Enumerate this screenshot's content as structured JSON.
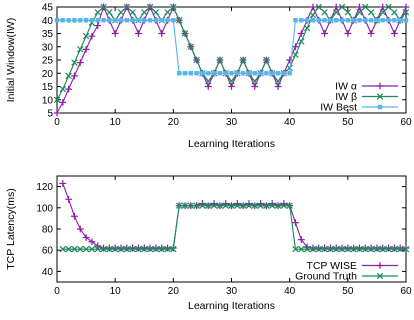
{
  "chart_data": [
    {
      "type": "line",
      "title": "",
      "xlabel": "Learning Iterations",
      "ylabel": "Initial Window(IW)",
      "xlim": [
        0,
        60
      ],
      "ylim": [
        5,
        45
      ],
      "xticks": [
        0,
        10,
        20,
        30,
        40,
        50,
        60
      ],
      "yticks": [
        5,
        10,
        15,
        20,
        25,
        30,
        35,
        40,
        45
      ],
      "legend_position": "bottom-right",
      "x": [
        0,
        1,
        2,
        3,
        4,
        5,
        6,
        7,
        8,
        9,
        10,
        11,
        12,
        13,
        14,
        15,
        16,
        17,
        18,
        19,
        20,
        21,
        22,
        23,
        24,
        25,
        26,
        27,
        28,
        29,
        30,
        31,
        32,
        33,
        34,
        35,
        36,
        37,
        38,
        39,
        40,
        41,
        42,
        43,
        44,
        45,
        46,
        47,
        48,
        49,
        50,
        51,
        52,
        53,
        54,
        55,
        56,
        57,
        58,
        59,
        60
      ],
      "series": [
        {
          "name": "IW α",
          "color": "#8b1fa8",
          "marker": "plus",
          "values": [
            5,
            9,
            14,
            19,
            24,
            29,
            34,
            38,
            45,
            40,
            35,
            40,
            45,
            40,
            35,
            40,
            45,
            40,
            35,
            40,
            45,
            40,
            35,
            30,
            25,
            20,
            15,
            20,
            25,
            20,
            15,
            20,
            25,
            20,
            15,
            20,
            25,
            20,
            15,
            20,
            25,
            30,
            35,
            40,
            45,
            40,
            35,
            40,
            45,
            40,
            35,
            40,
            45,
            40,
            35,
            40,
            45,
            40,
            35,
            40,
            45
          ]
        },
        {
          "name": "IW β",
          "color": "#1b8a5a",
          "marker": "x",
          "values": [
            10,
            14,
            19,
            24,
            29,
            34,
            39,
            43,
            45,
            43,
            40,
            43,
            45,
            43,
            40,
            43,
            45,
            43,
            40,
            43,
            45,
            40,
            35,
            30,
            25,
            20,
            17,
            20,
            25,
            20,
            17,
            20,
            25,
            20,
            17,
            20,
            25,
            20,
            17,
            20,
            22,
            27,
            32,
            37,
            42,
            45,
            43,
            40,
            43,
            45,
            43,
            40,
            43,
            45,
            43,
            40,
            43,
            45,
            43,
            40,
            43
          ]
        },
        {
          "name": "IW Best",
          "color": "#56b4e9",
          "marker": "square",
          "values": [
            40,
            40,
            40,
            40,
            40,
            40,
            40,
            40,
            40,
            40,
            40,
            40,
            40,
            40,
            40,
            40,
            40,
            40,
            40,
            40,
            40,
            20,
            20,
            20,
            20,
            20,
            20,
            20,
            20,
            20,
            20,
            20,
            20,
            20,
            20,
            20,
            20,
            20,
            20,
            20,
            20,
            40,
            40,
            40,
            40,
            40,
            40,
            40,
            40,
            40,
            40,
            40,
            40,
            40,
            40,
            40,
            40,
            40,
            40,
            40,
            40
          ]
        }
      ]
    },
    {
      "type": "line",
      "title": "",
      "xlabel": "Learning Iterations",
      "ylabel": "TCP Latency(ms)",
      "xlim": [
        0,
        60
      ],
      "ylim": [
        30,
        130
      ],
      "xticks": [
        0,
        10,
        20,
        30,
        40,
        50,
        60
      ],
      "yticks": [
        40,
        60,
        80,
        100,
        120
      ],
      "legend_position": "bottom-right",
      "x": [
        1,
        2,
        3,
        4,
        5,
        6,
        7,
        8,
        9,
        10,
        11,
        12,
        13,
        14,
        15,
        16,
        17,
        18,
        19,
        20,
        21,
        22,
        23,
        24,
        25,
        26,
        27,
        28,
        29,
        30,
        31,
        32,
        33,
        34,
        35,
        36,
        37,
        38,
        39,
        40,
        41,
        42,
        43,
        44,
        45,
        46,
        47,
        48,
        49,
        50,
        51,
        52,
        53,
        54,
        55,
        56,
        57,
        58,
        59,
        60
      ],
      "series": [
        {
          "name": "TCP WISE",
          "color": "#8b1fa8",
          "marker": "plus",
          "values": [
            123,
            108,
            92,
            80,
            72,
            68,
            64,
            62,
            62,
            62,
            62,
            62,
            62,
            62,
            62,
            62,
            62,
            62,
            62,
            62,
            102,
            102,
            102,
            102,
            104,
            102,
            104,
            102,
            104,
            102,
            104,
            102,
            104,
            102,
            104,
            102,
            104,
            102,
            104,
            102,
            86,
            70,
            63,
            62,
            62,
            62,
            62,
            62,
            62,
            62,
            62,
            62,
            62,
            62,
            62,
            62,
            62,
            62,
            62,
            62
          ]
        },
        {
          "name": "Ground Truth",
          "color": "#1b8a5a",
          "marker": "x",
          "values": [
            61,
            61,
            61,
            61,
            61,
            61,
            61,
            61,
            61,
            61,
            61,
            61,
            61,
            61,
            61,
            61,
            61,
            61,
            61,
            61,
            102,
            102,
            102,
            102,
            102,
            102,
            102,
            102,
            102,
            102,
            102,
            102,
            102,
            102,
            102,
            102,
            102,
            102,
            102,
            102,
            61,
            61,
            61,
            61,
            61,
            61,
            61,
            61,
            61,
            61,
            61,
            61,
            61,
            61,
            61,
            61,
            61,
            61,
            61,
            61
          ]
        }
      ]
    }
  ]
}
